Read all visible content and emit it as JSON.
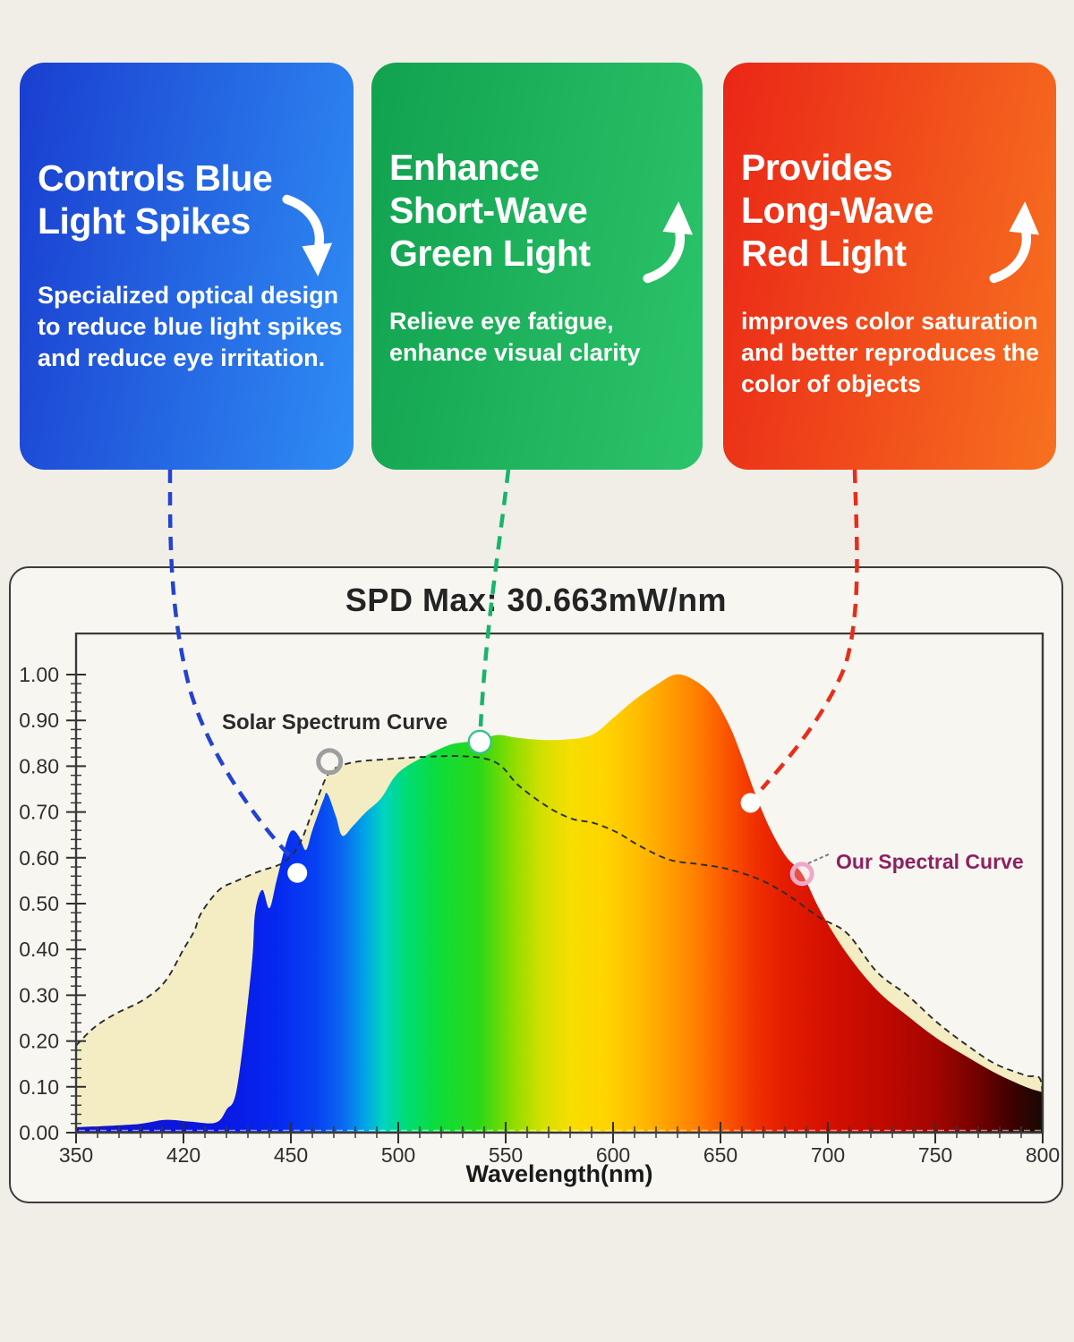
{
  "page": {
    "background": "#f1eee8"
  },
  "cards": [
    {
      "id": "blue",
      "title_lines": [
        "Controls Blue",
        "Light Spikes"
      ],
      "body": "Specialized optical design to reduce blue light spikes and reduce eye irritation.",
      "arrow": "down",
      "gradient_from": "#1a3ed0",
      "gradient_to": "#2f8df4",
      "connector_color": "#2343cf"
    },
    {
      "id": "green",
      "title_lines": [
        "Enhance",
        "Short-Wave",
        "Green Light"
      ],
      "body": "Relieve eye fatigue, enhance visual clarity",
      "arrow": "up",
      "gradient_from": "#11a24f",
      "gradient_to": "#2cc46a",
      "connector_color": "#17b56a"
    },
    {
      "id": "red",
      "title_lines": [
        "Provides",
        "Long-Wave",
        "Red Light"
      ],
      "body": "improves color saturation and better reproduces the color of objects",
      "arrow": "up",
      "gradient_from": "#ea2617",
      "gradient_to": "#f7711f",
      "connector_color": "#e62e1b"
    }
  ],
  "chart": {
    "title": "SPD Max: 30.663mW/nm",
    "xlabel": "Wavelength(nm)",
    "x_ticks": [
      "350",
      "420",
      "450",
      "500",
      "550",
      "600",
      "650",
      "700",
      "750",
      "800"
    ],
    "y_ticks": [
      "0.00",
      "0.10",
      "0.20",
      "0.30",
      "0.40",
      "0.50",
      "0.60",
      "0.70",
      "0.80",
      "0.90",
      "1.00"
    ],
    "solar_label": "Solar Spectrum Curve",
    "ours_label": "Our Spectral Curve",
    "ours_label_color": "#8d2160",
    "solar_label_color": "#2a2a2a"
  },
  "chart_data": {
    "type": "area",
    "title": "SPD Max: 30.663mW/nm",
    "xlabel": "Wavelength(nm)",
    "ylabel": "",
    "x_tick_values": [
      350,
      420,
      450,
      500,
      550,
      600,
      650,
      700,
      750,
      800
    ],
    "ylim": [
      0,
      1
    ],
    "spd_max": "30.663mW/nm",
    "series": [
      {
        "name": "Solar Spectrum Curve",
        "style": "dashed-outline-cream-fill",
        "fill_color": "#f4edc3",
        "outline_color": "#2b2b2b",
        "points": [
          [
            350,
            0.19
          ],
          [
            362,
            0.23
          ],
          [
            376,
            0.26
          ],
          [
            394,
            0.29
          ],
          [
            408,
            0.33
          ],
          [
            420,
            0.4
          ],
          [
            423,
            0.44
          ],
          [
            425,
            0.48
          ],
          [
            430,
            0.53
          ],
          [
            435,
            0.55
          ],
          [
            441,
            0.57
          ],
          [
            448,
            0.59
          ],
          [
            454,
            0.63
          ],
          [
            460,
            0.7
          ],
          [
            467,
            0.78
          ],
          [
            473,
            0.8
          ],
          [
            481,
            0.81
          ],
          [
            494,
            0.815
          ],
          [
            510,
            0.82
          ],
          [
            527,
            0.822
          ],
          [
            540,
            0.817
          ],
          [
            548,
            0.8
          ],
          [
            556,
            0.758
          ],
          [
            570,
            0.71
          ],
          [
            581,
            0.685
          ],
          [
            591,
            0.676
          ],
          [
            602,
            0.655
          ],
          [
            612,
            0.627
          ],
          [
            626,
            0.596
          ],
          [
            640,
            0.586
          ],
          [
            653,
            0.576
          ],
          [
            668,
            0.553
          ],
          [
            681,
            0.52
          ],
          [
            696,
            0.47
          ],
          [
            709,
            0.435
          ],
          [
            723,
            0.35
          ],
          [
            737,
            0.3
          ],
          [
            751,
            0.24
          ],
          [
            765,
            0.19
          ],
          [
            778,
            0.15
          ],
          [
            792,
            0.125
          ],
          [
            799,
            0.115
          ],
          [
            800,
            0.03
          ]
        ]
      },
      {
        "name": "Our Spectral Curve",
        "style": "spectrum-gradient-fill",
        "points": [
          [
            350,
            0.012
          ],
          [
            388,
            0.018
          ],
          [
            408,
            0.028
          ],
          [
            422,
            0.024
          ],
          [
            429,
            0.022
          ],
          [
            432,
            0.05
          ],
          [
            435,
            0.1
          ],
          [
            439,
            0.36
          ],
          [
            440,
            0.48
          ],
          [
            442,
            0.53
          ],
          [
            444,
            0.49
          ],
          [
            446,
            0.55
          ],
          [
            449,
            0.64
          ],
          [
            451,
            0.66
          ],
          [
            454,
            0.645
          ],
          [
            457,
            0.617
          ],
          [
            460,
            0.66
          ],
          [
            465,
            0.725
          ],
          [
            467,
            0.74
          ],
          [
            471,
            0.69
          ],
          [
            474,
            0.648
          ],
          [
            479,
            0.67
          ],
          [
            485,
            0.7
          ],
          [
            492,
            0.73
          ],
          [
            498,
            0.775
          ],
          [
            504,
            0.8
          ],
          [
            515,
            0.828
          ],
          [
            525,
            0.848
          ],
          [
            535,
            0.855
          ],
          [
            546,
            0.868
          ],
          [
            554,
            0.863
          ],
          [
            565,
            0.858
          ],
          [
            577,
            0.858
          ],
          [
            590,
            0.868
          ],
          [
            600,
            0.905
          ],
          [
            610,
            0.945
          ],
          [
            621,
            0.98
          ],
          [
            629,
            1.0
          ],
          [
            637,
            0.99
          ],
          [
            646,
            0.955
          ],
          [
            654,
            0.89
          ],
          [
            660,
            0.82
          ],
          [
            667,
            0.73
          ],
          [
            674,
            0.655
          ],
          [
            681,
            0.6
          ],
          [
            688,
            0.565
          ],
          [
            697,
            0.48
          ],
          [
            709,
            0.39
          ],
          [
            723,
            0.31
          ],
          [
            737,
            0.255
          ],
          [
            751,
            0.205
          ],
          [
            765,
            0.165
          ],
          [
            778,
            0.13
          ],
          [
            792,
            0.1
          ],
          [
            800,
            0.088
          ]
        ]
      }
    ],
    "markers": [
      {
        "name": "solar-curve-ring",
        "nm": 468,
        "v": 0.81,
        "kind": "ring-gray"
      },
      {
        "name": "blue-point",
        "nm": 453,
        "v": 0.567,
        "kind": "dot-white"
      },
      {
        "name": "green-point",
        "nm": 538,
        "v": 0.853,
        "kind": "dot-white-green-stroke"
      },
      {
        "name": "red-point",
        "nm": 664,
        "v": 0.72,
        "kind": "dot-white"
      },
      {
        "name": "ours-curve-ring",
        "nm": 688,
        "v": 0.565,
        "kind": "ring-pink"
      }
    ],
    "spectrum_stops": [
      [
        350,
        "#1414c8"
      ],
      [
        430,
        "#0a17e2"
      ],
      [
        446,
        "#0528f0"
      ],
      [
        462,
        "#0742f2"
      ],
      [
        474,
        "#0a67f0"
      ],
      [
        484,
        "#00a2e8"
      ],
      [
        493,
        "#00d4c0"
      ],
      [
        504,
        "#00dc74"
      ],
      [
        518,
        "#0cdc3c"
      ],
      [
        538,
        "#2cd816"
      ],
      [
        552,
        "#86dc00"
      ],
      [
        566,
        "#cfe000"
      ],
      [
        580,
        "#f6de00"
      ],
      [
        596,
        "#ffd400"
      ],
      [
        612,
        "#ffbc00"
      ],
      [
        626,
        "#ff9e00"
      ],
      [
        640,
        "#ff7c00"
      ],
      [
        654,
        "#fa5200"
      ],
      [
        666,
        "#f03000"
      ],
      [
        680,
        "#e41c00"
      ],
      [
        700,
        "#d41000"
      ],
      [
        725,
        "#c00900"
      ],
      [
        750,
        "#a30500"
      ],
      [
        770,
        "#700200"
      ],
      [
        786,
        "#3c0100"
      ],
      [
        800,
        "#180a04"
      ]
    ]
  }
}
